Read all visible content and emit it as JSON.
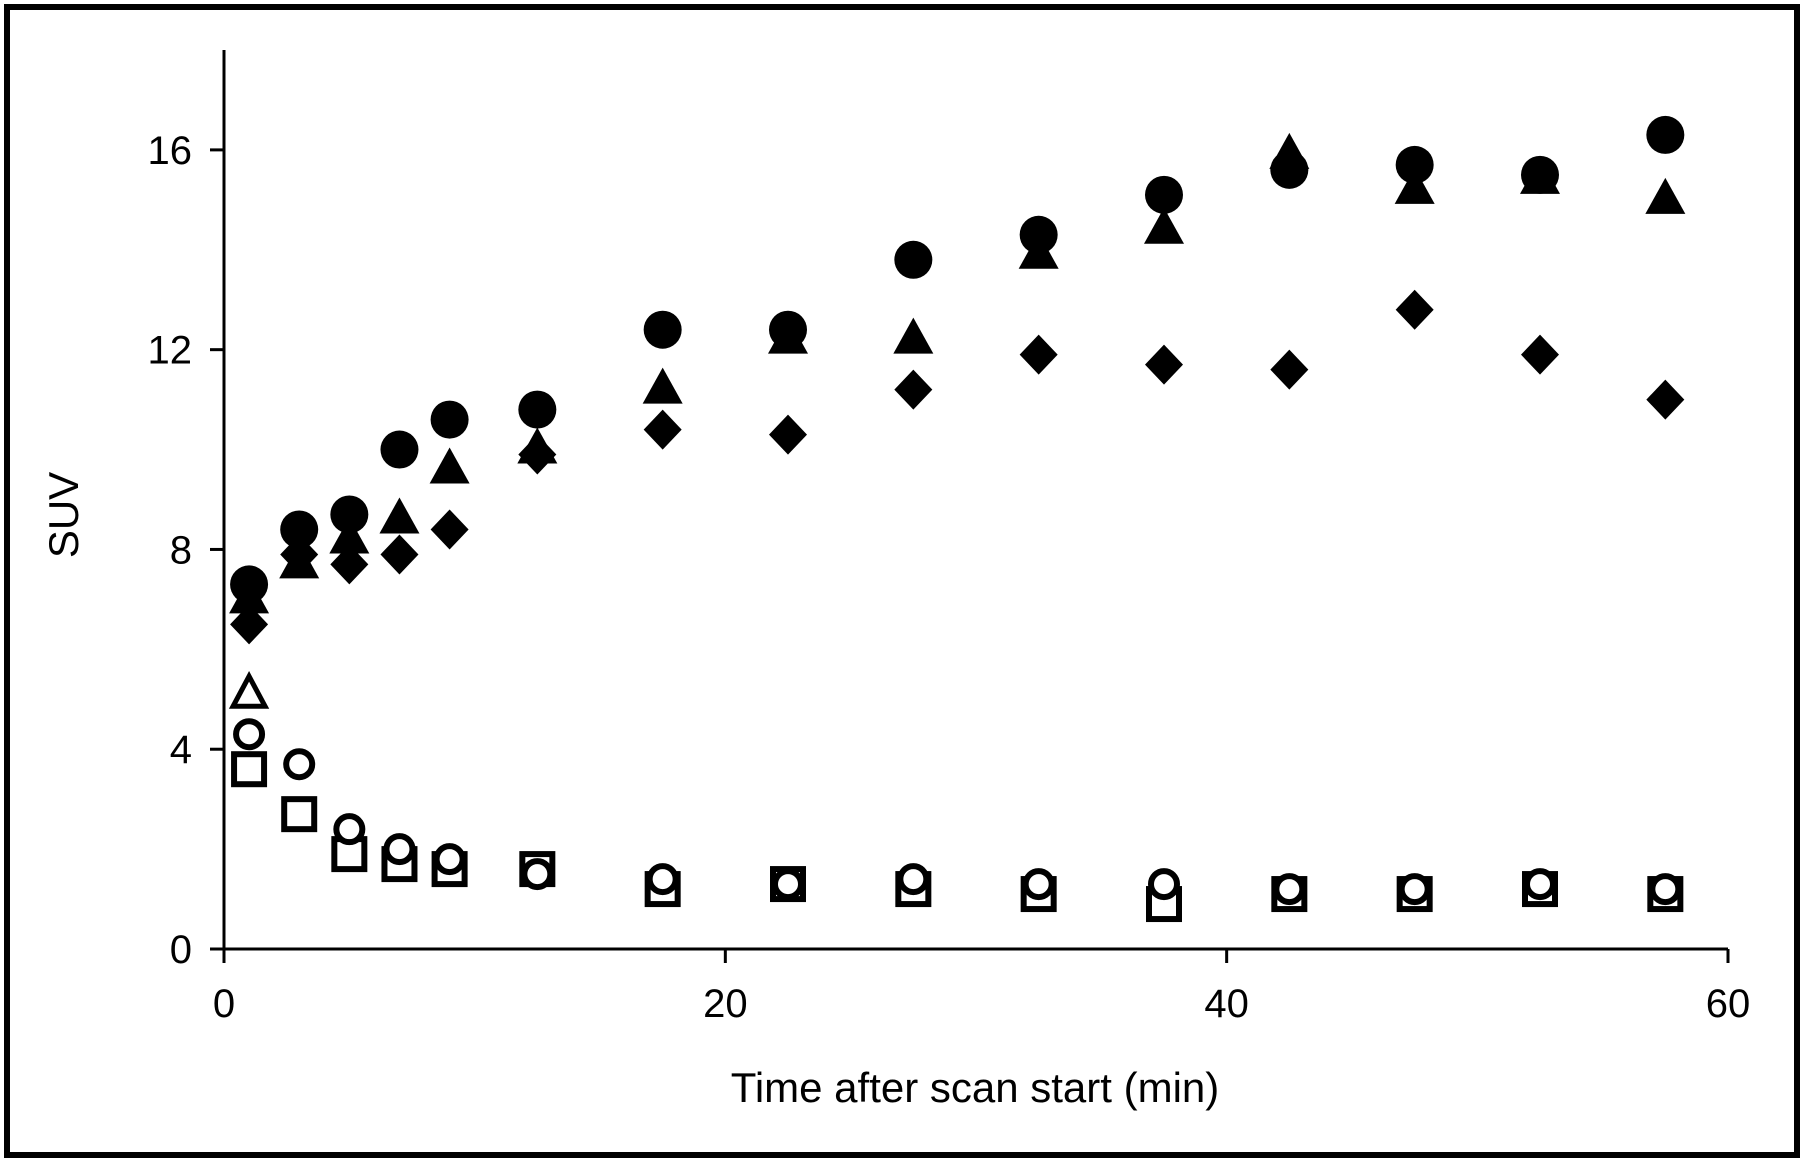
{
  "chart_data": {
    "type": "scatter",
    "xlabel": "Time  after scan start (min)",
    "ylabel": "SUV",
    "xlim": [
      0,
      60
    ],
    "ylim": [
      0,
      18
    ],
    "xticks": [
      0,
      20,
      40,
      60
    ],
    "yticks": [
      0,
      4,
      8,
      12,
      16
    ],
    "grid": false,
    "legend": "none",
    "series": [
      {
        "marker": "filled-circle",
        "x": [
          1,
          3,
          5,
          7,
          9,
          12.5,
          17.5,
          22.5,
          27.5,
          32.5,
          37.5,
          42.5,
          47.5,
          52.5,
          57.5
        ],
        "y": [
          7.3,
          8.4,
          8.7,
          10.0,
          10.6,
          10.8,
          12.4,
          12.4,
          13.8,
          14.3,
          15.1,
          15.6,
          15.7,
          15.5,
          16.3
        ]
      },
      {
        "marker": "filled-triangle",
        "x": [
          1,
          3,
          5,
          7,
          9,
          12.5,
          17.5,
          22.5,
          27.5,
          32.5,
          37.5,
          42.5,
          47.5,
          52.5,
          57.5
        ],
        "y": [
          7.0,
          7.7,
          8.2,
          8.6,
          9.6,
          10.0,
          11.2,
          12.2,
          12.2,
          13.9,
          14.4,
          15.9,
          15.2,
          15.4,
          15.0
        ]
      },
      {
        "marker": "filled-diamond",
        "x": [
          1,
          3,
          5,
          7,
          9,
          12.5,
          17.5,
          22.5,
          27.5,
          32.5,
          37.5,
          42.5,
          47.5,
          52.5,
          57.5
        ],
        "y": [
          6.5,
          7.9,
          7.7,
          7.9,
          8.4,
          9.9,
          10.4,
          10.3,
          11.2,
          11.9,
          11.7,
          11.6,
          12.8,
          11.9,
          11.0
        ]
      },
      {
        "marker": "open-triangle",
        "x": [
          1
        ],
        "y": [
          5.1
        ]
      },
      {
        "marker": "open-circle",
        "x": [
          1,
          3,
          5,
          7,
          9,
          12.5,
          17.5,
          22.5,
          27.5,
          32.5,
          37.5,
          42.5,
          47.5,
          52.5,
          57.5
        ],
        "y": [
          4.3,
          3.7,
          2.4,
          2.0,
          1.8,
          1.5,
          1.4,
          1.3,
          1.4,
          1.3,
          1.3,
          1.2,
          1.2,
          1.3,
          1.2
        ]
      },
      {
        "marker": "open-square",
        "x": [
          1,
          3,
          5,
          7,
          9,
          12.5,
          17.5,
          22.5,
          27.5,
          32.5,
          37.5,
          42.5,
          47.5,
          52.5,
          57.5
        ],
        "y": [
          3.6,
          2.7,
          1.9,
          1.7,
          1.6,
          1.6,
          1.2,
          1.3,
          1.2,
          1.1,
          0.9,
          1.1,
          1.1,
          1.2,
          1.1
        ]
      }
    ]
  }
}
